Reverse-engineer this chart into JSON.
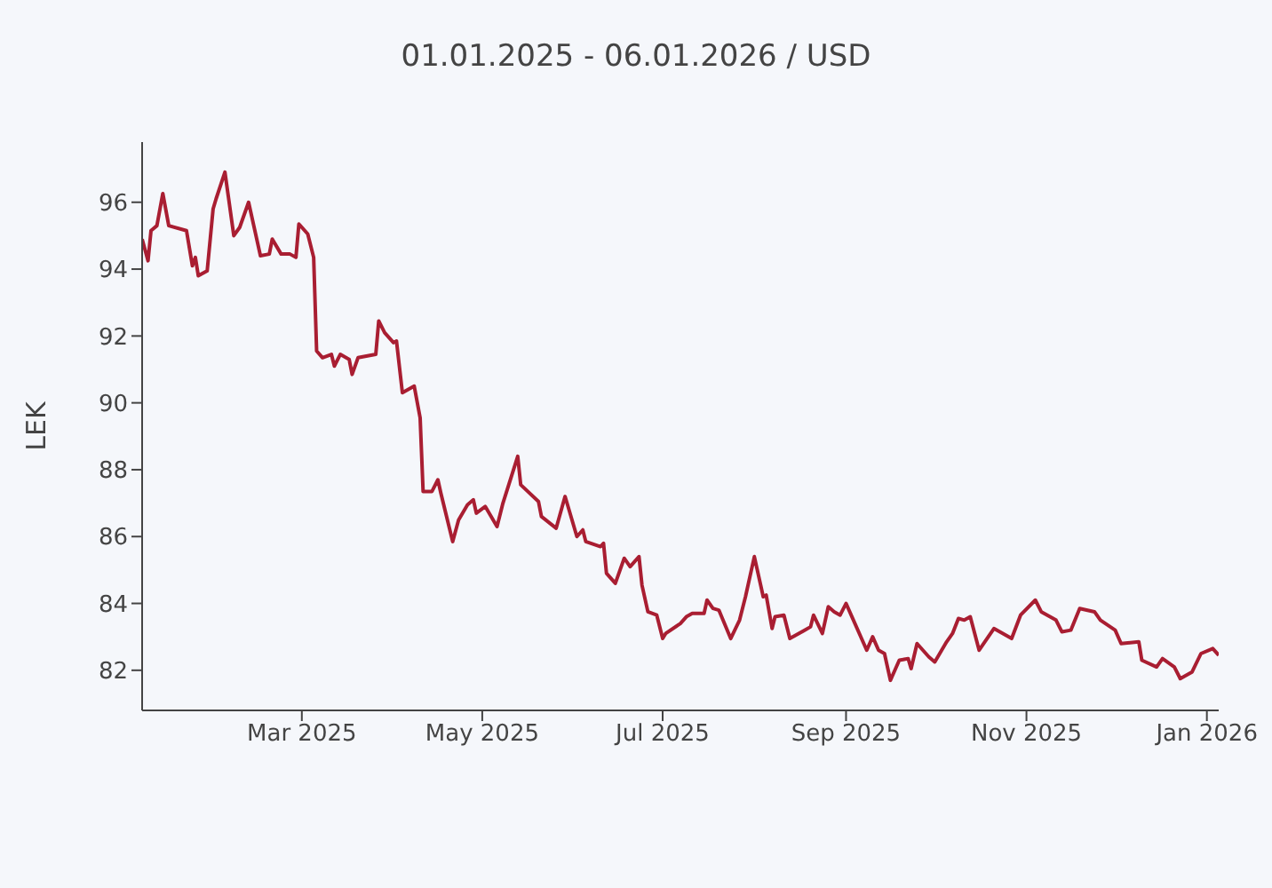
{
  "chart_data": {
    "type": "line",
    "title": "01.01.2025 - 06.01.2026 / USD",
    "ylabel": "LEK",
    "x": [
      "2025-01-06",
      "2025-01-08",
      "2025-01-09",
      "2025-01-11",
      "2025-01-13",
      "2025-01-15",
      "2025-01-21",
      "2025-01-23",
      "2025-01-24",
      "2025-01-25",
      "2025-01-28",
      "2025-01-30",
      "2025-01-31",
      "2025-02-03",
      "2025-02-06",
      "2025-02-08",
      "2025-02-11",
      "2025-02-15",
      "2025-02-18",
      "2025-02-19",
      "2025-02-22",
      "2025-02-25",
      "2025-02-27",
      "2025-02-28",
      "2025-03-03",
      "2025-03-05",
      "2025-03-06",
      "2025-03-08",
      "2025-03-11",
      "2025-03-12",
      "2025-03-14",
      "2025-03-17",
      "2025-03-18",
      "2025-03-20",
      "2025-03-26",
      "2025-03-27",
      "2025-03-29",
      "2025-04-01",
      "2025-04-02",
      "2025-04-04",
      "2025-04-08",
      "2025-04-10",
      "2025-04-11",
      "2025-04-14",
      "2025-04-16",
      "2025-04-17",
      "2025-04-21",
      "2025-04-23",
      "2025-04-26",
      "2025-04-28",
      "2025-04-29",
      "2025-05-02",
      "2025-05-06",
      "2025-05-08",
      "2025-05-13",
      "2025-05-14",
      "2025-05-20",
      "2025-05-21",
      "2025-05-26",
      "2025-05-29",
      "2025-06-02",
      "2025-06-04",
      "2025-06-05",
      "2025-06-10",
      "2025-06-11",
      "2025-06-12",
      "2025-06-15",
      "2025-06-18",
      "2025-06-20",
      "2025-06-23",
      "2025-06-24",
      "2025-06-26",
      "2025-06-29",
      "2025-07-01",
      "2025-07-02",
      "2025-07-07",
      "2025-07-09",
      "2025-07-11",
      "2025-07-15",
      "2025-07-16",
      "2025-07-18",
      "2025-07-20",
      "2025-07-24",
      "2025-07-27",
      "2025-07-29",
      "2025-08-01",
      "2025-08-04",
      "2025-08-05",
      "2025-08-07",
      "2025-08-08",
      "2025-08-11",
      "2025-08-13",
      "2025-08-18",
      "2025-08-20",
      "2025-08-21",
      "2025-08-24",
      "2025-08-26",
      "2025-08-28",
      "2025-08-30",
      "2025-09-01",
      "2025-09-03",
      "2025-09-08",
      "2025-09-10",
      "2025-09-12",
      "2025-09-14",
      "2025-09-16",
      "2025-09-19",
      "2025-09-22",
      "2025-09-23",
      "2025-09-25",
      "2025-09-29",
      "2025-10-01",
      "2025-10-05",
      "2025-10-07",
      "2025-10-09",
      "2025-10-11",
      "2025-10-13",
      "2025-10-16",
      "2025-10-21",
      "2025-10-27",
      "2025-10-30",
      "2025-11-04",
      "2025-11-06",
      "2025-11-11",
      "2025-11-13",
      "2025-11-16",
      "2025-11-19",
      "2025-11-24",
      "2025-11-26",
      "2025-12-01",
      "2025-12-03",
      "2025-12-09",
      "2025-12-10",
      "2025-12-15",
      "2025-12-17",
      "2025-12-21",
      "2025-12-23",
      "2025-12-27",
      "2025-12-30",
      "2026-01-03",
      "2026-01-05"
    ],
    "series": [
      {
        "color": "#a91e32",
        "values": [
          94.9,
          94.25,
          95.15,
          95.3,
          96.26,
          95.3,
          95.15,
          94.1,
          94.35,
          93.8,
          93.95,
          95.8,
          96.1,
          96.9,
          95.0,
          95.25,
          96.0,
          94.4,
          94.45,
          94.9,
          94.45,
          94.45,
          94.35,
          95.35,
          95.05,
          94.35,
          91.55,
          91.35,
          91.45,
          91.1,
          91.45,
          91.3,
          90.85,
          91.35,
          91.45,
          92.45,
          92.1,
          91.8,
          91.85,
          90.3,
          90.5,
          89.55,
          87.35,
          87.35,
          87.7,
          87.3,
          85.85,
          86.5,
          86.95,
          87.1,
          86.7,
          86.9,
          86.3,
          87.0,
          88.4,
          87.55,
          87.05,
          86.6,
          86.25,
          87.2,
          86.0,
          86.2,
          85.85,
          85.7,
          85.8,
          84.9,
          84.6,
          85.35,
          85.1,
          85.4,
          84.55,
          83.75,
          83.65,
          82.95,
          83.1,
          83.4,
          83.6,
          83.7,
          83.7,
          84.1,
          83.85,
          83.8,
          82.95,
          83.5,
          84.2,
          85.4,
          84.2,
          84.25,
          83.25,
          83.6,
          83.65,
          82.95,
          83.2,
          83.3,
          83.65,
          83.1,
          83.9,
          83.75,
          83.65,
          84.0,
          83.6,
          82.6,
          83.0,
          82.6,
          82.5,
          81.7,
          82.3,
          82.35,
          82.05,
          82.8,
          82.4,
          82.25,
          82.85,
          83.1,
          83.55,
          83.5,
          83.6,
          82.6,
          83.25,
          82.95,
          83.65,
          84.1,
          83.75,
          83.5,
          83.15,
          83.2,
          83.85,
          83.75,
          83.5,
          83.2,
          82.8,
          82.85,
          82.3,
          82.1,
          82.35,
          82.1,
          81.75,
          81.95,
          82.5,
          82.65,
          82.45
        ]
      }
    ],
    "xlim": [
      "2025-01-06",
      "2026-01-05"
    ],
    "xticks": [
      {
        "value": "2025-03-01",
        "label": "Mar 2025"
      },
      {
        "value": "2025-05-01",
        "label": "May 2025"
      },
      {
        "value": "2025-07-01",
        "label": "Jul 2025"
      },
      {
        "value": "2025-09-01",
        "label": "Sep 2025"
      },
      {
        "value": "2025-11-01",
        "label": "Nov 2025"
      },
      {
        "value": "2026-01-01",
        "label": "Jan 2026"
      }
    ],
    "ylim": [
      80.8,
      97.8
    ],
    "yticks": [
      82,
      84,
      86,
      88,
      90,
      92,
      94,
      96
    ],
    "grid": false,
    "marker": "none",
    "line_style": "solid"
  }
}
